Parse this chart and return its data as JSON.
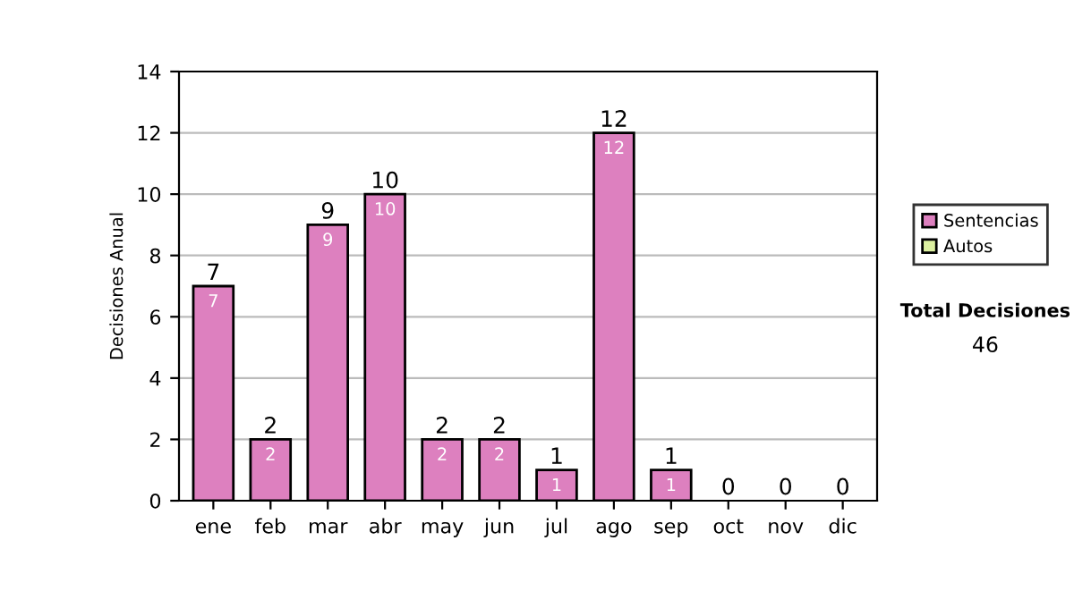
{
  "chart_data": {
    "type": "bar",
    "ylabel": "Decisiones Anual",
    "stacked": true,
    "categories": [
      "ene",
      "feb",
      "mar",
      "abr",
      "may",
      "jun",
      "jul",
      "ago",
      "sep",
      "oct",
      "nov",
      "dic"
    ],
    "series": [
      {
        "name": "Sentencias",
        "color": "#dd80bf",
        "values": [
          7,
          2,
          9,
          10,
          2,
          2,
          1,
          12,
          1,
          0,
          0,
          0
        ],
        "value_labels": [
          "7",
          "2",
          "9",
          "10",
          "2",
          "2",
          "1",
          "12",
          "1",
          null,
          null,
          null
        ]
      },
      {
        "name": "Autos",
        "color": "#dcf0a0",
        "values": [
          0,
          0,
          0,
          0,
          0,
          0,
          0,
          0,
          0,
          0,
          0,
          0
        ]
      }
    ],
    "totals": [
      "7",
      "2",
      "9",
      "10",
      "2",
      "2",
      "1",
      "12",
      "1",
      "0",
      "0",
      "0"
    ],
    "ylim": [
      0,
      14
    ],
    "yticks": [
      0,
      2,
      4,
      6,
      8,
      10,
      12,
      14
    ],
    "grid": "y",
    "legend": "right",
    "annotations": [
      "Total Decisiones",
      "46"
    ]
  }
}
